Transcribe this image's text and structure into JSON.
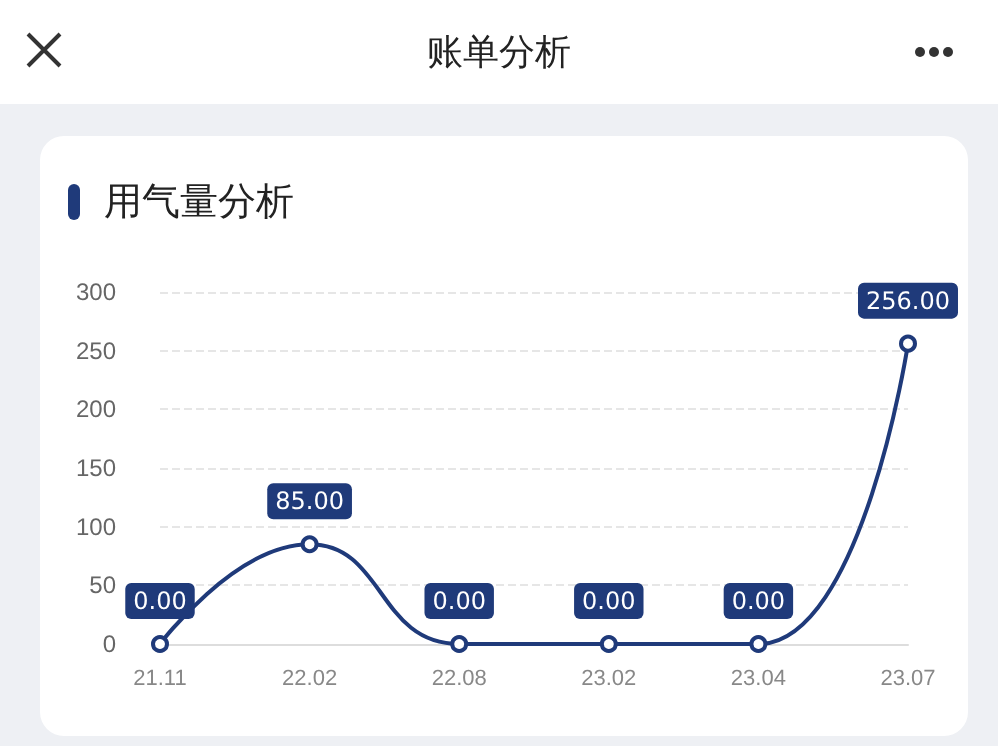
{
  "chart_data": {
    "type": "line",
    "title": "用气量分析",
    "annotations": [
      "账单分析"
    ],
    "categories": [
      "21.11",
      "22.02",
      "22.08",
      "23.02",
      "23.04",
      "23.07"
    ],
    "series": [
      {
        "color": "#1f3a7a",
        "values": [
          0,
          85,
          0,
          0,
          0,
          256
        ],
        "value_labels": [
          "0.00",
          "85.00",
          "0.00",
          "0.00",
          "0.00",
          "256.00"
        ]
      }
    ],
    "ylim": [
      0,
      300
    ],
    "yticks": [
      0,
      50,
      100,
      150,
      200,
      250,
      300
    ],
    "grid": "y",
    "marker": "circle",
    "line_style": "solid"
  }
}
